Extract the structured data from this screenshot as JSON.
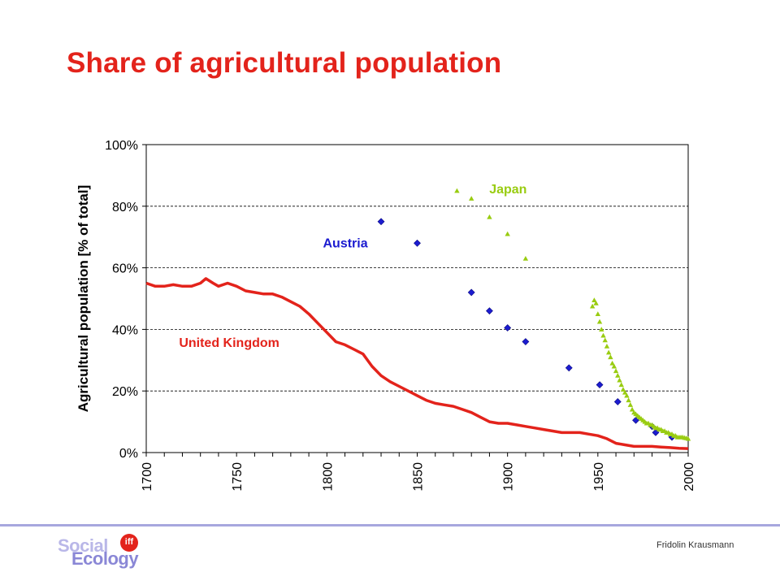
{
  "slide": {
    "title": "Share of agricultural population",
    "author": "Fridolin Krausmann"
  },
  "logo": {
    "word1": "Social",
    "word2": "Ecology",
    "badge": "iff"
  },
  "chart_data": {
    "type": "scatter",
    "title": "",
    "xlabel": "",
    "ylabel": "Agricultural population [% of total]",
    "xlim": [
      1700,
      2000
    ],
    "ylim": [
      0,
      100
    ],
    "xticks": [
      1700,
      1750,
      1800,
      1850,
      1900,
      1950,
      2000
    ],
    "yticks": [
      0,
      20,
      40,
      60,
      80,
      100
    ],
    "ytick_labels": [
      "0%",
      "20%",
      "40%",
      "60%",
      "80%",
      "100%"
    ],
    "grid": "horizontal-dashed",
    "series": [
      {
        "name": "United Kingdom",
        "color": "#e3231b",
        "marker": "dense-line",
        "x": [
          1700,
          1705,
          1710,
          1715,
          1720,
          1725,
          1730,
          1733,
          1737,
          1740,
          1745,
          1750,
          1755,
          1760,
          1765,
          1770,
          1775,
          1780,
          1785,
          1790,
          1795,
          1800,
          1805,
          1810,
          1815,
          1820,
          1825,
          1830,
          1835,
          1840,
          1845,
          1850,
          1855,
          1860,
          1865,
          1870,
          1875,
          1880,
          1885,
          1890,
          1895,
          1900,
          1905,
          1910,
          1915,
          1920,
          1925,
          1930,
          1935,
          1940,
          1945,
          1950,
          1955,
          1960,
          1965,
          1970,
          1975,
          1980,
          1985,
          1990,
          1995,
          2000
        ],
        "y": [
          55,
          54,
          54,
          54.5,
          54,
          54,
          55,
          56.5,
          55,
          54,
          55,
          54,
          52.5,
          52,
          51.5,
          51.5,
          50.5,
          49,
          47.5,
          45,
          42,
          39,
          36,
          35,
          33.5,
          32,
          28,
          25,
          23,
          21.5,
          20,
          18.5,
          17,
          16,
          15.5,
          15,
          14,
          13,
          11.5,
          10,
          9.5,
          9.5,
          9,
          8.5,
          8,
          7.5,
          7,
          6.5,
          6.5,
          6.5,
          6,
          5.5,
          4.5,
          3,
          2.5,
          2,
          2,
          2,
          1.8,
          1.6,
          1.4,
          1.3
        ]
      },
      {
        "name": "Austria",
        "color": "#1c1cd0",
        "marker": "diamond",
        "x": [
          1830,
          1850,
          1880,
          1890,
          1900,
          1910,
          1934,
          1951,
          1961,
          1971,
          1980,
          1982,
          1991
        ],
        "y": [
          75,
          68,
          52,
          46,
          40.5,
          36,
          27.5,
          22,
          16.5,
          10.5,
          8.5,
          6.5,
          5
        ]
      },
      {
        "name": "Japan",
        "color": "#99cc11",
        "marker": "triangle",
        "x": [
          1872,
          1880,
          1890,
          1900,
          1910,
          1947,
          1948,
          1949,
          1950,
          1951,
          1952,
          1953,
          1954,
          1955,
          1956,
          1957,
          1958,
          1959,
          1960,
          1961,
          1962,
          1963,
          1964,
          1965,
          1966,
          1967,
          1968,
          1969,
          1970,
          1971,
          1972,
          1973,
          1974,
          1975,
          1976,
          1977,
          1978,
          1979,
          1980,
          1981,
          1982,
          1983,
          1984,
          1985,
          1986,
          1987,
          1988,
          1989,
          1990,
          1991,
          1992,
          1993,
          1994,
          1995,
          1996,
          1997,
          1998,
          1999,
          2000
        ],
        "y": [
          85,
          82.5,
          76.5,
          71,
          63,
          47.5,
          49.5,
          48.5,
          45,
          42.5,
          40,
          38,
          36.5,
          34.5,
          32.5,
          31,
          29,
          28,
          26.5,
          25,
          23.5,
          22,
          20.5,
          19.5,
          18.5,
          17,
          15.5,
          14,
          13,
          12.5,
          12,
          11.5,
          11,
          10.5,
          10,
          9.5,
          9.5,
          9,
          9,
          8.5,
          8,
          8,
          7.5,
          7.5,
          7,
          7,
          6.5,
          6.5,
          6,
          6,
          5.5,
          5.5,
          5,
          5,
          5,
          5,
          4.8,
          4.7,
          4.5
        ]
      }
    ],
    "annotations": [
      {
        "text": "Japan",
        "series": "Japan"
      },
      {
        "text": "Austria",
        "series": "Austria"
      },
      {
        "text": "United Kingdom",
        "series": "United Kingdom"
      }
    ]
  }
}
